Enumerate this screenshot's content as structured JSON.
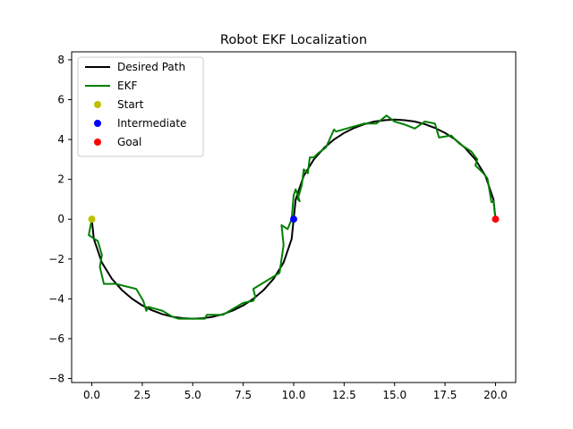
{
  "chart_data": {
    "type": "line",
    "title": "Robot EKF Localization",
    "xlabel": "",
    "ylabel": "",
    "xlim": [
      -1.0,
      21.0
    ],
    "ylim": [
      -8.2,
      8.4
    ],
    "xticks": [
      0.0,
      2.5,
      5.0,
      7.5,
      10.0,
      12.5,
      15.0,
      17.5,
      20.0
    ],
    "xtick_labels": [
      "0.0",
      "2.5",
      "5.0",
      "7.5",
      "10.0",
      "12.5",
      "15.0",
      "17.5",
      "20.0"
    ],
    "yticks": [
      -8,
      -6,
      -4,
      -2,
      0,
      2,
      4,
      6,
      8
    ],
    "ytick_labels": [
      "−8",
      "−6",
      "−4",
      "−2",
      "0",
      "2",
      "4",
      "6",
      "8"
    ],
    "grid": false,
    "legend_position": "top-left",
    "series": [
      {
        "name": "Desired Path",
        "kind": "line",
        "color": "#000000",
        "description": "Two semicircles of radius 5: lower arc centred at (5,0) from (0,0) to (10,0), upper arc centred at (15,0) from (10,0) to (20,0)",
        "x": [
          0.0,
          0.1,
          0.5,
          1.0,
          1.5,
          2.0,
          2.5,
          3.0,
          3.5,
          4.0,
          4.5,
          5.0,
          5.5,
          6.0,
          6.5,
          7.0,
          7.5,
          8.0,
          8.5,
          9.0,
          9.5,
          9.9,
          10.0,
          10.1,
          10.5,
          11.0,
          11.5,
          12.0,
          12.5,
          13.0,
          13.5,
          14.0,
          14.5,
          15.0,
          15.5,
          16.0,
          16.5,
          17.0,
          17.5,
          18.0,
          18.5,
          19.0,
          19.5,
          19.9,
          20.0
        ],
        "y": [
          0.0,
          -0.99,
          -2.18,
          -3.0,
          -3.57,
          -4.0,
          -4.33,
          -4.58,
          -4.77,
          -4.9,
          -4.97,
          -5.0,
          -4.97,
          -4.9,
          -4.77,
          -4.58,
          -4.33,
          -4.0,
          -3.57,
          -3.0,
          -2.18,
          -0.99,
          0.0,
          0.99,
          2.18,
          3.0,
          3.57,
          4.0,
          4.33,
          4.58,
          4.77,
          4.9,
          4.97,
          5.0,
          4.97,
          4.9,
          4.77,
          4.58,
          4.33,
          4.0,
          3.57,
          3.0,
          2.18,
          0.99,
          0.0
        ]
      },
      {
        "name": "EKF",
        "kind": "line",
        "color": "#008000",
        "x": [
          0.0,
          -0.15,
          0.3,
          0.5,
          0.4,
          0.6,
          1.2,
          2.2,
          2.55,
          2.7,
          2.8,
          3.5,
          4.0,
          4.3,
          5.0,
          5.6,
          5.7,
          6.5,
          7.0,
          7.5,
          8.0,
          8.1,
          8.0,
          9.3,
          9.5,
          9.4,
          9.7,
          9.9,
          10.0,
          10.1,
          10.3,
          10.2,
          10.4,
          10.5,
          10.7,
          10.8,
          11.0,
          11.2,
          11.6,
          12.0,
          12.1,
          12.8,
          13.5,
          14.1,
          14.6,
          15.0,
          15.5,
          16.0,
          16.5,
          17.0,
          17.2,
          17.8,
          18.2,
          18.8,
          19.1,
          19.0,
          19.4,
          19.6,
          19.8,
          19.9,
          20.0
        ],
        "y": [
          0.0,
          -0.8,
          -1.1,
          -1.8,
          -2.4,
          -3.25,
          -3.25,
          -3.5,
          -4.1,
          -4.6,
          -4.4,
          -4.6,
          -4.9,
          -5.0,
          -5.0,
          -5.0,
          -4.8,
          -4.8,
          -4.5,
          -4.2,
          -4.1,
          -3.9,
          -3.5,
          -2.7,
          -1.3,
          -0.3,
          -0.5,
          0.0,
          1.2,
          1.5,
          0.9,
          1.0,
          1.7,
          2.5,
          2.3,
          3.1,
          3.1,
          3.3,
          3.6,
          4.5,
          4.4,
          4.6,
          4.8,
          4.8,
          5.2,
          4.9,
          4.75,
          4.55,
          4.9,
          4.8,
          4.1,
          4.2,
          3.8,
          3.4,
          3.0,
          2.7,
          2.3,
          2.05,
          0.85,
          0.9,
          0.0
        ]
      },
      {
        "name": "Start",
        "kind": "marker",
        "color": "#bfbf00",
        "x": [
          0.0
        ],
        "y": [
          0.0
        ]
      },
      {
        "name": "Intermediate",
        "kind": "marker",
        "color": "#0000ff",
        "x": [
          10.0
        ],
        "y": [
          0.0
        ]
      },
      {
        "name": "Goal",
        "kind": "marker",
        "color": "#ff0000",
        "x": [
          20.0
        ],
        "y": [
          0.0
        ]
      }
    ]
  }
}
